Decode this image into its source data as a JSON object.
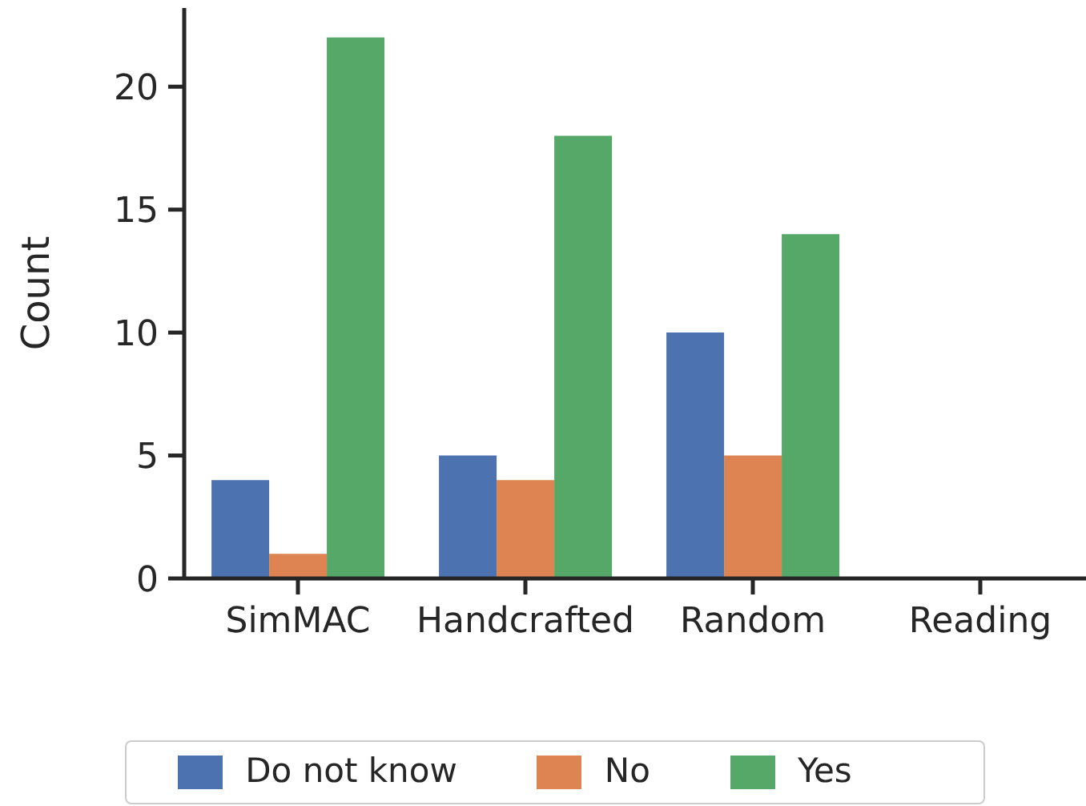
{
  "chart_data": {
    "type": "bar",
    "ylabel": "Count",
    "categories": [
      "SimMAC",
      "Handcrafted",
      "Random",
      "Reading"
    ],
    "series": [
      {
        "name": "Do not know",
        "color": "#4c72b0",
        "values": [
          4,
          5,
          10,
          0
        ]
      },
      {
        "name": "No",
        "color": "#dd8452",
        "values": [
          1,
          4,
          5,
          0
        ]
      },
      {
        "name": "Yes",
        "color": "#55a868",
        "values": [
          22,
          18,
          14,
          0
        ]
      }
    ],
    "ylim": [
      0,
      23.2
    ],
    "yticks": [
      0,
      5,
      10,
      15,
      20
    ],
    "grid": false,
    "legend": "bottom"
  }
}
